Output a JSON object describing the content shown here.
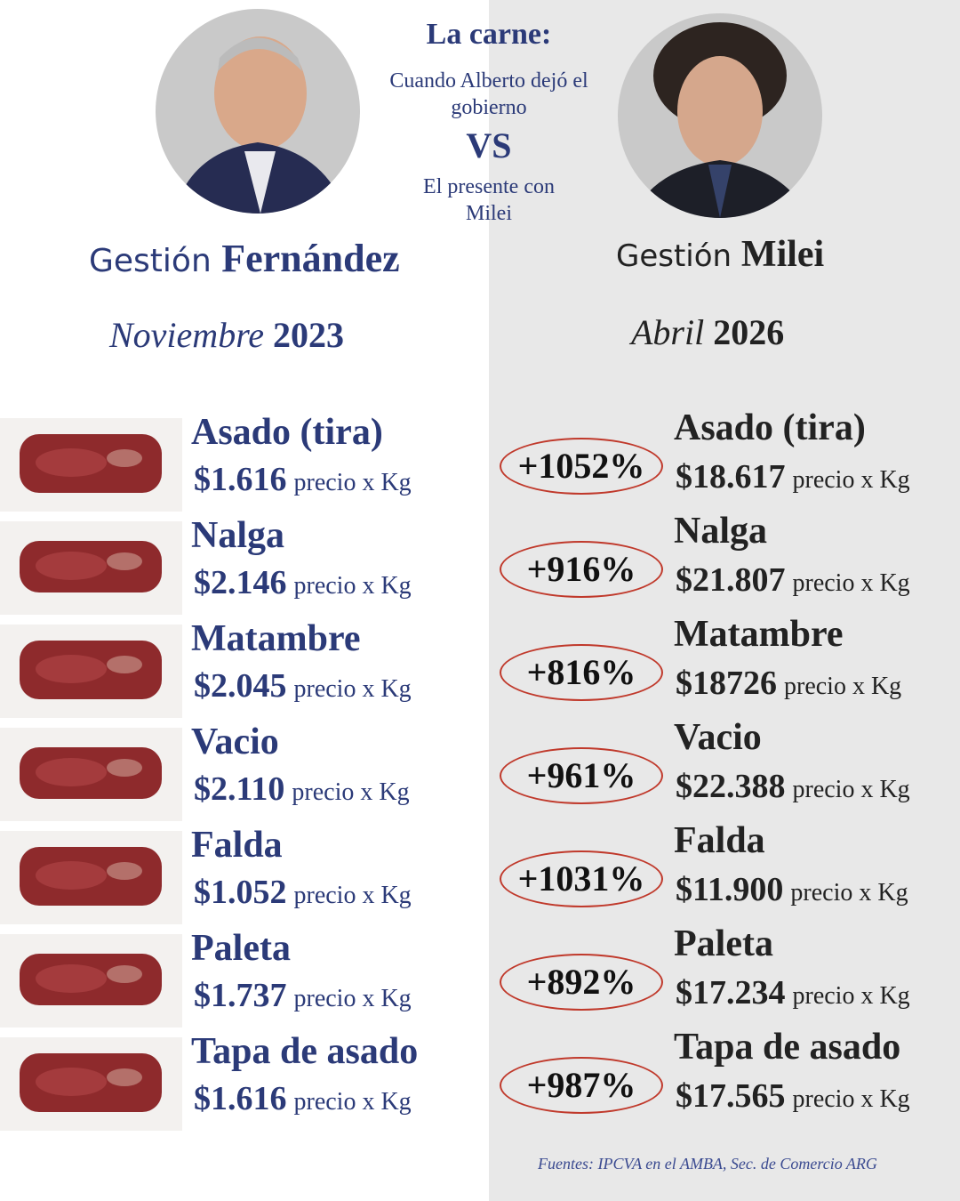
{
  "header": {
    "title": "La carne:",
    "subtitle_1": "Cuando Alberto dejó el gobierno",
    "vs": "VS",
    "subtitle_2": "El presente con Milei"
  },
  "left": {
    "label": "Gestión",
    "name": "Fernández",
    "month": "Noviembre",
    "year": "2023"
  },
  "right": {
    "label": "Gestión",
    "name": "Milei",
    "month": "Abril",
    "year": "2026"
  },
  "unit": "precio x Kg",
  "rows": [
    {
      "cut": "Asado (tira)",
      "price_before": "$1.616",
      "change": "+1052%",
      "price_now": "$18.617"
    },
    {
      "cut": "Nalga",
      "price_before": "$2.146",
      "change": "+916%",
      "price_now": "$21.807"
    },
    {
      "cut": "Matambre",
      "price_before": "$2.045",
      "change": "+816%",
      "price_now": "$18726"
    },
    {
      "cut": "Vacio",
      "price_before": "$2.110",
      "change": "+961%",
      "price_now": "$22.388"
    },
    {
      "cut": "Falda",
      "price_before": "$1.052",
      "change": "+1031%",
      "price_now": "$11.900"
    },
    {
      "cut": "Paleta",
      "price_before": "$1.737",
      "change": "+892%",
      "price_now": "$17.234"
    },
    {
      "cut": "Tapa de asado",
      "price_before": "$1.616",
      "change": "+987%",
      "price_now": "$17.565"
    }
  ],
  "source": "Fuentes: IPCVA en el AMBA, Sec. de Comercio ARG"
}
